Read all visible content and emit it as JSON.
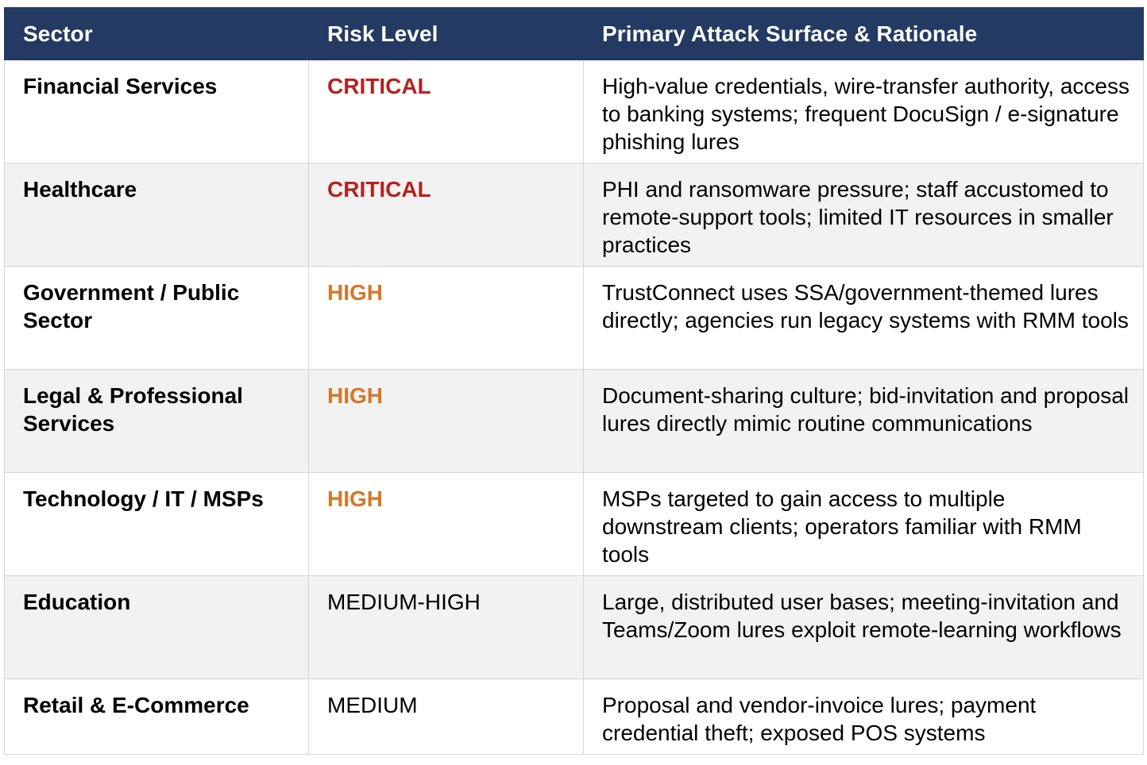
{
  "header": {
    "sector": "Sector",
    "risk": "Risk Level",
    "rationale": "Primary Attack Surface & Rationale"
  },
  "colors": {
    "header_bg": "#233a62",
    "critical": "#b5221e",
    "high": "#d4782a",
    "row_alt": "#f2f2f2"
  },
  "rows": [
    {
      "sector": "Financial Services",
      "risk": "CRITICAL",
      "rationale": "High-value credentials, wire-transfer authority, access to banking systems; frequent DocuSign / e-signature phishing lures"
    },
    {
      "sector": "Healthcare",
      "risk": "CRITICAL",
      "rationale": "PHI and ransomware pressure; staff accustomed to remote-support tools; limited IT resources in smaller practices"
    },
    {
      "sector": "Government / Public Sector",
      "risk": "HIGH",
      "rationale": "TrustConnect uses SSA/government-themed lures directly; agencies run legacy systems with RMM tools"
    },
    {
      "sector": "Legal & Professional Services",
      "risk": "HIGH",
      "rationale": "Document-sharing culture; bid-invitation and proposal lures directly mimic routine communications"
    },
    {
      "sector": "Technology / IT / MSPs",
      "risk": "HIGH",
      "rationale": "MSPs targeted to gain access to multiple downstream clients; operators familiar with RMM tools"
    },
    {
      "sector": "Education",
      "risk": "MEDIUM-HIGH",
      "rationale": "Large, distributed user bases; meeting-invitation and Teams/Zoom lures exploit remote-learning workflows"
    },
    {
      "sector": "Retail & E-Commerce",
      "risk": "MEDIUM",
      "rationale": "Proposal and vendor-invoice lures; payment credential theft; exposed POS systems"
    }
  ]
}
